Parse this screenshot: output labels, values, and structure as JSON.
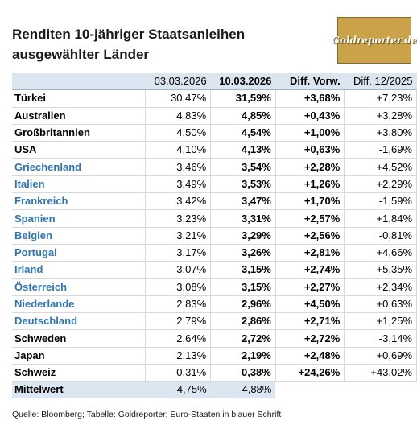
{
  "title_line1": "Renditen 10-jähriger Staatsanleihen",
  "title_line2": "ausgewählter Länder",
  "logo_text": "Goldreporter.de",
  "colors": {
    "euro_blue": "#2e75b6",
    "header_bg": "#dce6f1",
    "logo_gold": "#c9a24a"
  },
  "header": {
    "col1": "03.03.2026",
    "col2": "10.03.2026",
    "col3": "Diff. Vorw.",
    "col4": "Diff. 12/2025"
  },
  "rows": [
    {
      "name": "Türkei",
      "euro": false,
      "v1": "30,47%",
      "v2": "31,59%",
      "d1": "+3,68%",
      "d2": "+7,23%"
    },
    {
      "name": "Australien",
      "euro": false,
      "v1": "4,83%",
      "v2": "4,85%",
      "d1": "+0,43%",
      "d2": "+3,28%"
    },
    {
      "name": "Großbritannien",
      "euro": false,
      "v1": "4,50%",
      "v2": "4,54%",
      "d1": "+1,00%",
      "d2": "+3,80%"
    },
    {
      "name": "USA",
      "euro": false,
      "v1": "4,10%",
      "v2": "4,13%",
      "d1": "+0,63%",
      "d2": "-1,69%"
    },
    {
      "name": "Griechenland",
      "euro": true,
      "v1": "3,46%",
      "v2": "3,54%",
      "d1": "+2,28%",
      "d2": "+4,52%"
    },
    {
      "name": "Italien",
      "euro": true,
      "v1": "3,49%",
      "v2": "3,53%",
      "d1": "+1,26%",
      "d2": "+2,29%"
    },
    {
      "name": "Frankreich",
      "euro": true,
      "v1": "3,42%",
      "v2": "3,47%",
      "d1": "+1,70%",
      "d2": "-1,59%"
    },
    {
      "name": "Spanien",
      "euro": true,
      "v1": "3,23%",
      "v2": "3,31%",
      "d1": "+2,57%",
      "d2": "+1,84%"
    },
    {
      "name": "Belgien",
      "euro": true,
      "v1": "3,21%",
      "v2": "3,29%",
      "d1": "+2,56%",
      "d2": "-0,81%"
    },
    {
      "name": "Portugal",
      "euro": true,
      "v1": "3,17%",
      "v2": "3,26%",
      "d1": "+2,81%",
      "d2": "+4,66%"
    },
    {
      "name": "Irland",
      "euro": true,
      "v1": "3,07%",
      "v2": "3,15%",
      "d1": "+2,74%",
      "d2": "+5,35%"
    },
    {
      "name": "Österreich",
      "euro": true,
      "v1": "3,08%",
      "v2": "3,15%",
      "d1": "+2,27%",
      "d2": "+2,34%"
    },
    {
      "name": "Niederlande",
      "euro": true,
      "v1": "2,83%",
      "v2": "2,96%",
      "d1": "+4,50%",
      "d2": "+0,63%"
    },
    {
      "name": "Deutschland",
      "euro": true,
      "v1": "2,79%",
      "v2": "2,86%",
      "d1": "+2,71%",
      "d2": "+1,25%"
    },
    {
      "name": "Schweden",
      "euro": false,
      "v1": "2,64%",
      "v2": "2,72%",
      "d1": "+2,72%",
      "d2": "-3,14%"
    },
    {
      "name": "Japan",
      "euro": false,
      "v1": "2,13%",
      "v2": "2,19%",
      "d1": "+2,48%",
      "d2": "+0,69%"
    },
    {
      "name": "Schweiz",
      "euro": false,
      "v1": "0,31%",
      "v2": "0,38%",
      "d1": "+24,26%",
      "d2": "+43,02%"
    }
  ],
  "average": {
    "label": "Mittelwert",
    "v1": "4,75%",
    "v2": "4,88%"
  },
  "source": "Quelle: Bloomberg; Tabelle: Goldreporter; Euro-Staaten in blauer Schrift"
}
